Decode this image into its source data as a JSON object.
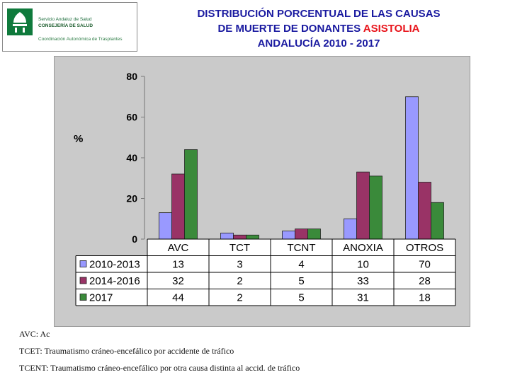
{
  "logo": {
    "line1": "Servicio Andaluz de Salud",
    "line2": "CONSEJERÍA DE SALUD",
    "line3": "Coordinación Autonómica de Trasplantes"
  },
  "title": {
    "line1": "DISTRIBUCIÓN PORCENTUAL DE LAS CAUSAS",
    "line2_prefix": "DE MUERTE DE DONANTES",
    "line2_highlight": "ASISTOLIA",
    "line3": "ANDALUCÍA 2010 - 2017"
  },
  "chart_data": {
    "type": "bar",
    "categories": [
      "AVC",
      "TCT",
      "TCNT",
      "ANOXIA",
      "OTROS"
    ],
    "series": [
      {
        "name": "2010-2013",
        "values": [
          13,
          3,
          4,
          10,
          70
        ],
        "color": "#9999ff"
      },
      {
        "name": "2014-2016",
        "values": [
          32,
          2,
          5,
          33,
          28
        ],
        "color": "#993366"
      },
      {
        "name": "2017",
        "values": [
          44,
          2,
          5,
          31,
          18
        ],
        "color": "#3a8a3a"
      }
    ],
    "ylabel": "%",
    "ylim": [
      0,
      80
    ],
    "yticks": [
      0,
      20,
      40,
      60,
      80
    ],
    "legend": "data-table",
    "grid": false
  },
  "footnotes": {
    "avc": "AVC: Ac",
    "tcet": "TCET: Traumatismo cráneo-encefálico por accidente de tráfico",
    "tcent": "TCENT: Traumatismo cráneo-encefálico por otra causa distinta al  accid. de tráfico"
  }
}
